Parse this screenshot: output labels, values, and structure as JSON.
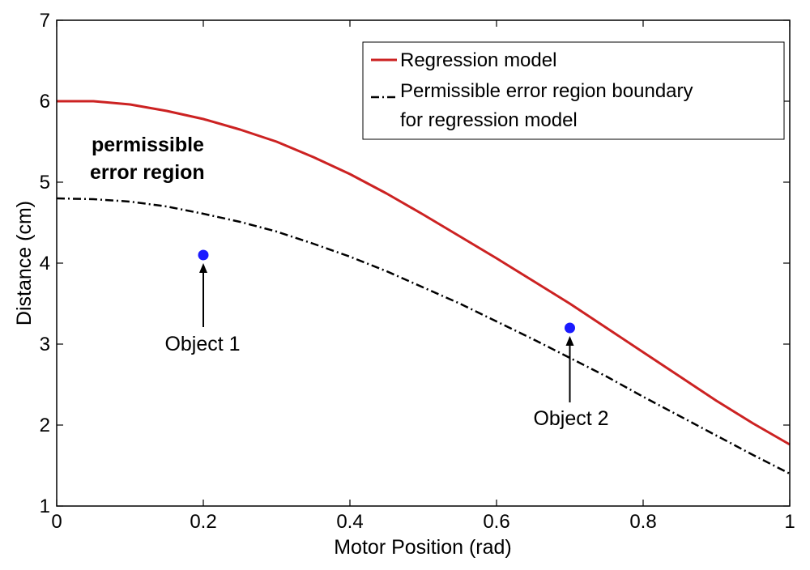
{
  "chart_data": {
    "type": "line",
    "xlabel": "Motor Position (rad)",
    "ylabel": "Distance (cm)",
    "xlim": [
      0,
      1
    ],
    "ylim": [
      1,
      7
    ],
    "xticks": [
      "0",
      "0.2",
      "0.4",
      "0.6",
      "0.8",
      "1"
    ],
    "yticks": [
      "1",
      "2",
      "3",
      "4",
      "5",
      "6",
      "7"
    ],
    "grid": false,
    "legend_position": "top-right",
    "series": [
      {
        "name": "Regression model",
        "color": "#cc2222",
        "line_style": "solid",
        "x": [
          0,
          0.05,
          0.1,
          0.15,
          0.2,
          0.25,
          0.3,
          0.35,
          0.4,
          0.45,
          0.5,
          0.55,
          0.6,
          0.65,
          0.7,
          0.75,
          0.8,
          0.85,
          0.9,
          0.95,
          1.0
        ],
        "y": [
          6.0,
          6.0,
          5.96,
          5.88,
          5.78,
          5.65,
          5.5,
          5.31,
          5.1,
          4.86,
          4.6,
          4.33,
          4.06,
          3.78,
          3.5,
          3.2,
          2.9,
          2.6,
          2.3,
          2.02,
          1.76
        ]
      },
      {
        "name": "Permissible error region boundary for regression model",
        "name_lines": [
          "Permissible error region boundary",
          "for regression model"
        ],
        "color": "#000000",
        "line_style": "dash-dot",
        "x": [
          0,
          0.05,
          0.1,
          0.15,
          0.2,
          0.25,
          0.3,
          0.35,
          0.4,
          0.45,
          0.5,
          0.55,
          0.6,
          0.65,
          0.7,
          0.75,
          0.8,
          0.85,
          0.9,
          0.95,
          1.0
        ],
        "y": [
          4.8,
          4.79,
          4.76,
          4.7,
          4.61,
          4.51,
          4.39,
          4.24,
          4.08,
          3.9,
          3.7,
          3.5,
          3.28,
          3.06,
          2.83,
          2.6,
          2.35,
          2.11,
          1.87,
          1.63,
          1.4
        ]
      }
    ],
    "points": [
      {
        "label": "Object 1",
        "x": 0.2,
        "y": 4.1,
        "color": "#1a1aff"
      },
      {
        "label": "Object 2",
        "x": 0.7,
        "y": 3.2,
        "color": "#1a1aff"
      }
    ],
    "annotations": {
      "region_label_lines": [
        "permissible",
        "error region"
      ],
      "object1_label": "Object 1",
      "object2_label": "Object 2"
    }
  }
}
